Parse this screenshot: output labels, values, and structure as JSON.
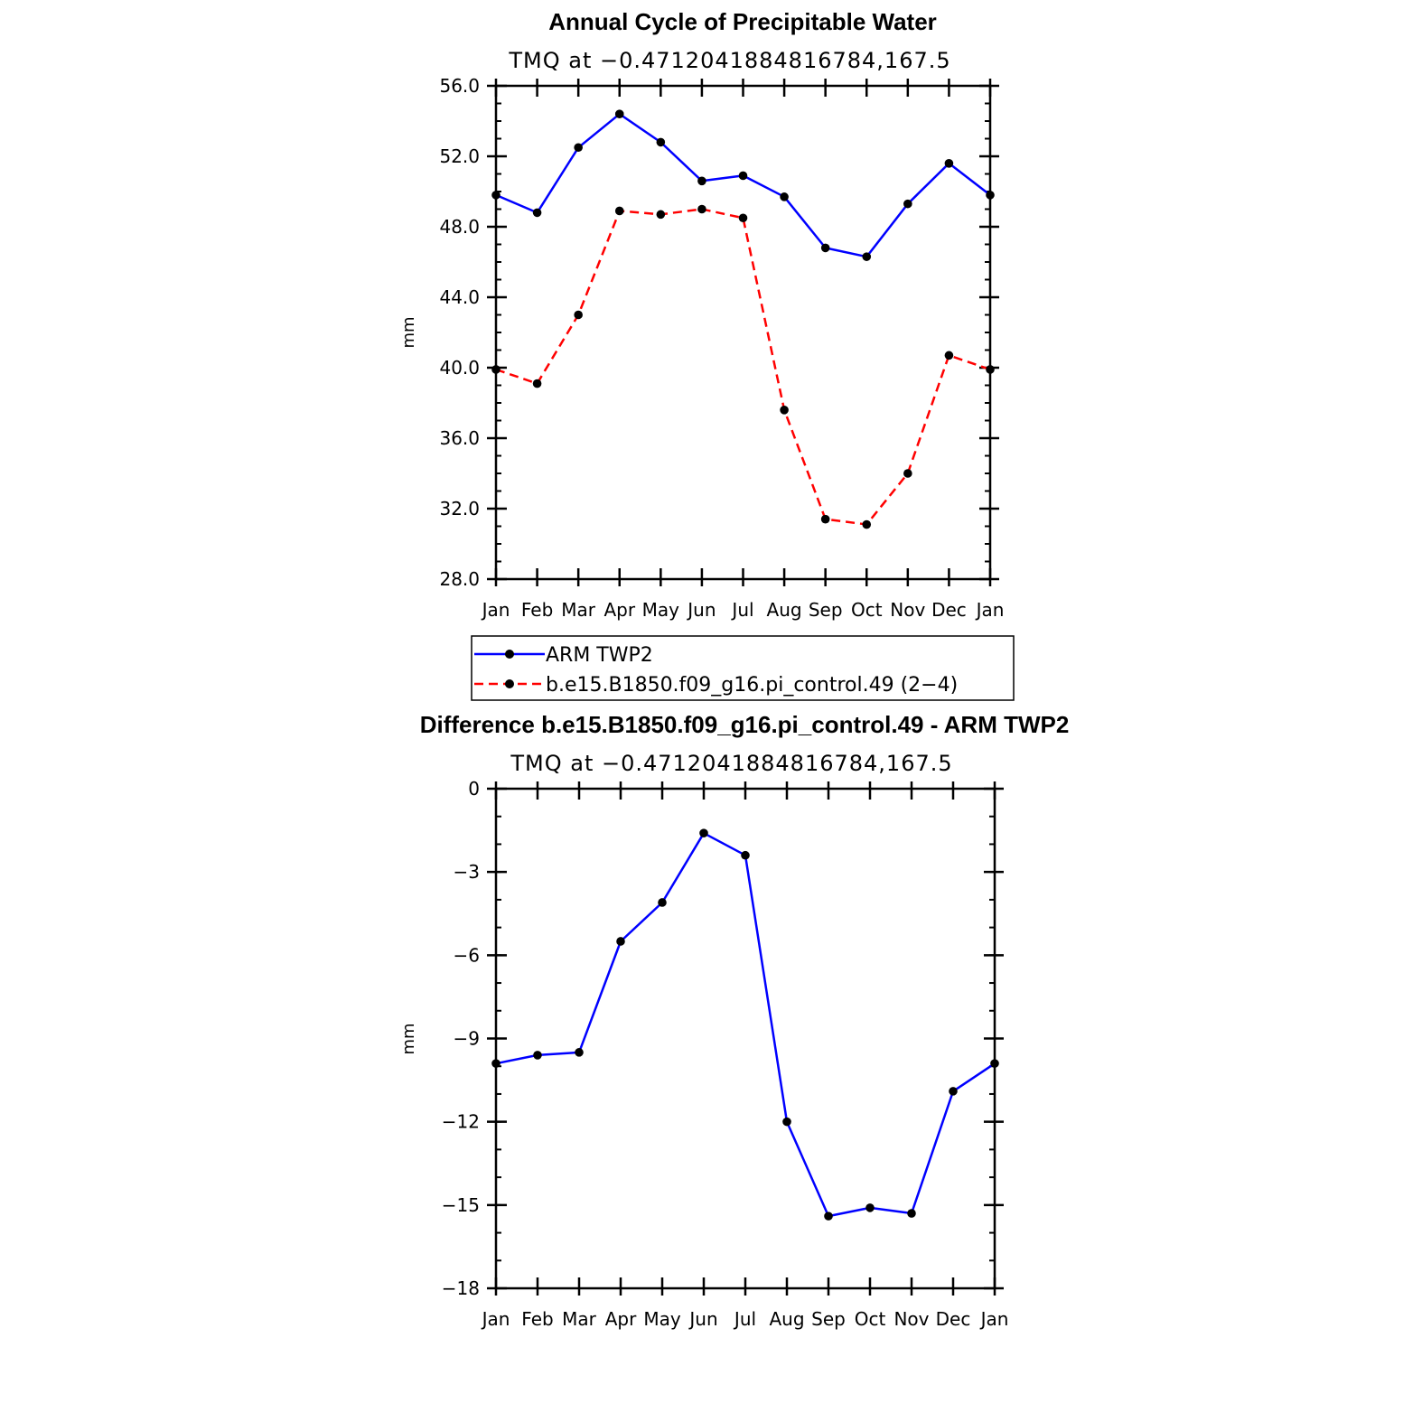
{
  "chart_data": [
    {
      "type": "line",
      "title": "Annual Cycle of Precipitable Water",
      "subtitle": "TMQ at −0.4712041884816784,167.5",
      "xlabel": "",
      "ylabel": "mm",
      "categories": [
        "Jan",
        "Feb",
        "Mar",
        "Apr",
        "May",
        "Jun",
        "Jul",
        "Aug",
        "Sep",
        "Oct",
        "Nov",
        "Dec",
        "Jan"
      ],
      "ylim": [
        28.0,
        56.0
      ],
      "yticks": [
        {
          "v": 28,
          "label": "28.0"
        },
        {
          "v": 32,
          "label": "32.0"
        },
        {
          "v": 36,
          "label": "36.0"
        },
        {
          "v": 40,
          "label": "40.0"
        },
        {
          "v": 44,
          "label": "44.0"
        },
        {
          "v": 48,
          "label": "48.0"
        },
        {
          "v": 52,
          "label": "52.0"
        },
        {
          "v": 56,
          "label": "56.0"
        }
      ],
      "minor_step": 1,
      "grid": false,
      "legend_position": "below",
      "series": [
        {
          "name": "ARM TWP2",
          "color": "#0000ff",
          "dash": "solid",
          "values": [
            49.8,
            48.8,
            52.5,
            54.4,
            52.8,
            50.6,
            50.9,
            49.7,
            46.8,
            46.3,
            49.3,
            51.6,
            49.8
          ]
        },
        {
          "name": "b.e15.B1850.f09_g16.pi_control.49 (2−4)",
          "color": "#ff0000",
          "dash": "dashed",
          "values": [
            39.9,
            39.1,
            43.0,
            48.9,
            48.7,
            49.0,
            48.5,
            37.6,
            31.4,
            31.1,
            34.0,
            40.7,
            39.9
          ]
        }
      ]
    },
    {
      "type": "line",
      "title": "Difference b.e15.B1850.f09_g16.pi_control.49 - ARM TWP2",
      "subtitle": "TMQ at −0.4712041884816784,167.5",
      "xlabel": "",
      "ylabel": "mm",
      "categories": [
        "Jan",
        "Feb",
        "Mar",
        "Apr",
        "May",
        "Jun",
        "Jul",
        "Aug",
        "Sep",
        "Oct",
        "Nov",
        "Dec",
        "Jan"
      ],
      "ylim": [
        -18,
        0
      ],
      "yticks": [
        {
          "v": -18,
          "label": "−18"
        },
        {
          "v": -15,
          "label": "−15"
        },
        {
          "v": -12,
          "label": "−12"
        },
        {
          "v": -9,
          "label": "−9"
        },
        {
          "v": -6,
          "label": "−6"
        },
        {
          "v": -3,
          "label": "−3"
        },
        {
          "v": 0,
          "label": "0"
        }
      ],
      "minor_step": 1,
      "grid": false,
      "series": [
        {
          "name": "",
          "color": "#0000ff",
          "dash": "solid",
          "values": [
            -9.9,
            -9.6,
            -9.5,
            -5.5,
            -4.1,
            -1.6,
            -2.4,
            -12.0,
            -15.4,
            -15.1,
            -15.3,
            -10.9,
            -9.9
          ]
        }
      ]
    }
  ]
}
